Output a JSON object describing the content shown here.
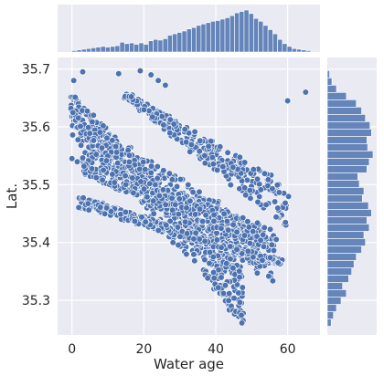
{
  "chart_data": {
    "type": "jointplot",
    "xlabel": "Water age",
    "ylabel": "Lat.",
    "xlim": [
      -4,
      69
    ],
    "ylim": [
      35.24,
      35.72
    ],
    "xticks": [
      0,
      20,
      40,
      60
    ],
    "yticks": [
      35.3,
      35.4,
      35.5,
      35.6,
      35.7
    ],
    "grid": true,
    "colors": {
      "background": "#EAEAF2",
      "marker": "#4C72B0",
      "bar": "#4C72B0",
      "grid": "#ffffff"
    },
    "scatter_bands": [
      {
        "x_range": [
          0,
          48
        ],
        "y_start": [
          35.655,
          35.61
        ],
        "y_end": [
          35.36,
          35.255
        ],
        "count": 520
      },
      {
        "x_range": [
          0,
          56
        ],
        "y_start": [
          35.63,
          35.57
        ],
        "y_end": [
          35.41,
          35.33
        ],
        "count": 420
      },
      {
        "x_range": [
          2,
          57
        ],
        "y_start": [
          35.55,
          35.52
        ],
        "y_end": [
          35.42,
          35.38
        ],
        "count": 330
      },
      {
        "x_range": [
          2,
          58
        ],
        "y_start": [
          35.48,
          35.46
        ],
        "y_end": [
          35.37,
          35.36
        ],
        "count": 330
      },
      {
        "x_range": [
          15,
          60
        ],
        "y_start": [
          35.66,
          35.65
        ],
        "y_end": [
          35.5,
          35.42
        ],
        "count": 320
      }
    ],
    "scatter_outliers": [
      {
        "x": 0,
        "y": 35.545
      },
      {
        "x": 0.5,
        "y": 35.68
      },
      {
        "x": 3,
        "y": 35.695
      },
      {
        "x": 13,
        "y": 35.692
      },
      {
        "x": 19,
        "y": 35.697
      },
      {
        "x": 22,
        "y": 35.69
      },
      {
        "x": 60,
        "y": 35.645
      },
      {
        "x": 65,
        "y": 35.66
      },
      {
        "x": 24,
        "y": 35.68
      },
      {
        "x": 26,
        "y": 35.672
      },
      {
        "x": 15,
        "y": 35.5
      },
      {
        "x": 6,
        "y": 35.62
      }
    ],
    "x_marginal": {
      "bin_edges_start": 0,
      "bin_width": 1.33,
      "counts": [
        2,
        3,
        4,
        5,
        6,
        7,
        8,
        7,
        8,
        9,
        14,
        12,
        13,
        11,
        13,
        11,
        16,
        18,
        17,
        19,
        24,
        26,
        28,
        30,
        33,
        35,
        38,
        40,
        42,
        44,
        45,
        47,
        49,
        52,
        56,
        58,
        60,
        55,
        48,
        44,
        38,
        32,
        26,
        18,
        12,
        8,
        5,
        4,
        3,
        2,
        1
      ]
    },
    "y_marginal": {
      "bin_edges": [
        35.255,
        35.71
      ],
      "counts": [
        5,
        8,
        12,
        18,
        25,
        20,
        28,
        32,
        35,
        38,
        45,
        50,
        48,
        55,
        52,
        58,
        54,
        46,
        48,
        42,
        40,
        52,
        55,
        60,
        53,
        52,
        58,
        56,
        50,
        45,
        38,
        25,
        12,
        6,
        3,
        1
      ]
    }
  }
}
